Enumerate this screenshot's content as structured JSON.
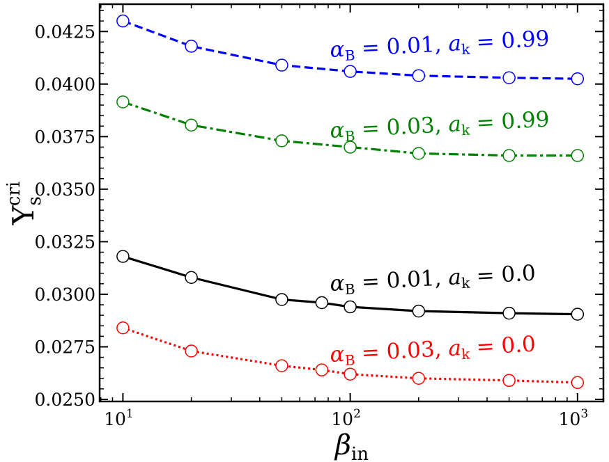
{
  "chart_data": {
    "type": "line",
    "title": "",
    "xlabel": "β_in",
    "ylabel": "Υ_s^cri",
    "x_scale": "log",
    "xlim": [
      7.9,
      1300
    ],
    "ylim": [
      0.0249,
      0.0438
    ],
    "x_tick_labels": [
      "10",
      "10",
      "10"
    ],
    "x_tick_exponents": [
      "1",
      "2",
      "3"
    ],
    "y_ticks": [
      "0.0250",
      "0.0275",
      "0.0300",
      "0.0325",
      "0.0350",
      "0.0375",
      "0.0400",
      "0.0425"
    ],
    "grid": false,
    "series": [
      {
        "name": "αB = 0.01, ak = 0.99",
        "color": "#0000ff",
        "line_style": "dashed",
        "x": [
          10,
          20,
          50,
          100,
          200,
          500,
          1000
        ],
        "y": [
          0.043,
          0.0418,
          0.0409,
          0.0406,
          0.0404,
          0.0403,
          0.04025
        ],
        "label_parts": {
          "alpha": "α",
          "alpha_sub": "B",
          "mid": " = 0.01, ",
          "a": "a",
          "a_sub": "k",
          "end": " = 0.99"
        }
      },
      {
        "name": "αB = 0.03, ak = 0.99",
        "color": "#008000",
        "line_style": "dashdot",
        "x": [
          10,
          20,
          50,
          100,
          200,
          500,
          1000
        ],
        "y": [
          0.03915,
          0.03805,
          0.0373,
          0.037,
          0.0367,
          0.0366,
          0.0366
        ],
        "label_parts": {
          "alpha": "α",
          "alpha_sub": "B",
          "mid": " = 0.03, ",
          "a": "a",
          "a_sub": "k",
          "end": " = 0.99"
        }
      },
      {
        "name": "αB = 0.01, ak = 0.0",
        "color": "#000000",
        "line_style": "solid",
        "x": [
          10,
          20,
          50,
          75,
          100,
          200,
          500,
          1000
        ],
        "y": [
          0.0318,
          0.0308,
          0.02975,
          0.0296,
          0.0294,
          0.0292,
          0.0291,
          0.02905
        ],
        "label_parts": {
          "alpha": "α",
          "alpha_sub": "B",
          "mid": " = 0.01, ",
          "a": "a",
          "a_sub": "k",
          "end": " = 0.0"
        }
      },
      {
        "name": "αB = 0.03, ak = 0.0",
        "color": "#ff0000",
        "line_style": "dotted",
        "x": [
          10,
          20,
          50,
          75,
          100,
          200,
          500,
          1000
        ],
        "y": [
          0.0284,
          0.0273,
          0.0266,
          0.0264,
          0.0262,
          0.026,
          0.0259,
          0.0258
        ],
        "label_parts": {
          "alpha": "α",
          "alpha_sub": "B",
          "mid": " = 0.03, ",
          "a": "a",
          "a_sub": "k",
          "end": " = 0.0"
        }
      }
    ]
  },
  "axes": {
    "x_label_main": "β",
    "x_label_sub": "in",
    "y_label_main": "Υ",
    "y_label_sub": "s",
    "y_label_sup": "cri"
  }
}
